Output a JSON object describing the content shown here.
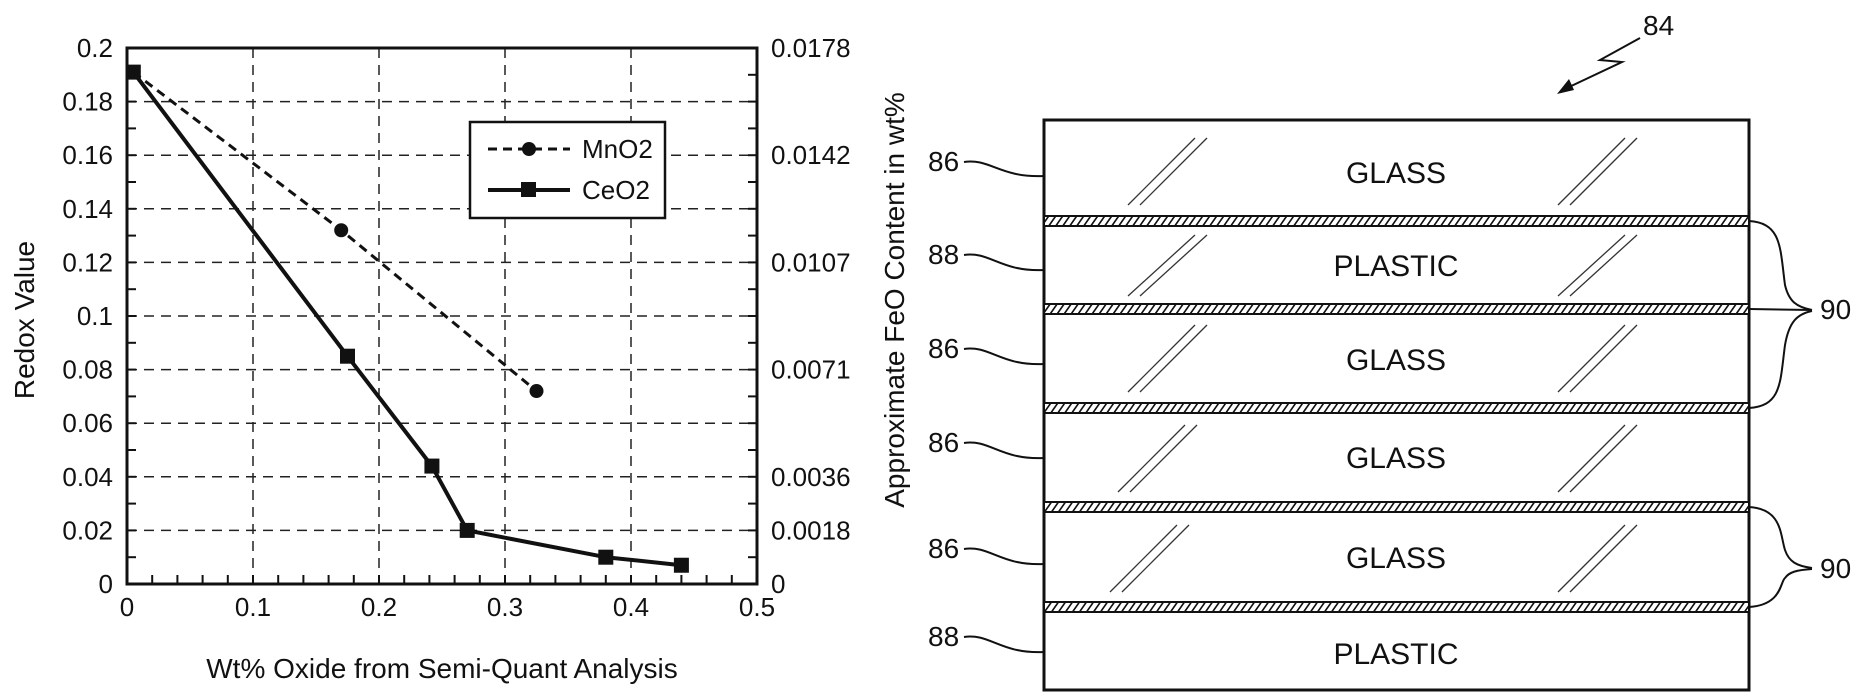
{
  "chart_data": {
    "type": "line",
    "xlabel": "Wt% Oxide from Semi-Quant Analysis",
    "ylabel": "Redox Value",
    "y2label": "Approximate FeO Content in wt%",
    "xlim": [
      0,
      0.5
    ],
    "ylim": [
      0,
      0.2
    ],
    "x_ticks": [
      "0",
      "0.1",
      "0.2",
      "0.3",
      "0.4",
      "0.5"
    ],
    "y_ticks": [
      "0",
      "0.02",
      "0.04",
      "0.06",
      "0.08",
      "0.1",
      "0.12",
      "0.14",
      "0.16",
      "0.18",
      "0.2"
    ],
    "y2_ticks": [
      {
        "label": "0.0178",
        "at": 0.2
      },
      {
        "label": "0.0142",
        "at": 0.16
      },
      {
        "label": "0.0107",
        "at": 0.12
      },
      {
        "label": "0.0071",
        "at": 0.08
      },
      {
        "label": "0.0036",
        "at": 0.04
      },
      {
        "label": "0.0018",
        "at": 0.02
      },
      {
        "label": "0",
        "at": 0
      }
    ],
    "grid": true,
    "legend_position": "top-right",
    "series": [
      {
        "name": "MnO2",
        "line": "dashed",
        "marker": "circle",
        "x": [
          0.005,
          0.17,
          0.325
        ],
        "y": [
          0.191,
          0.132,
          0.072
        ]
      },
      {
        "name": "CeO2",
        "line": "solid",
        "marker": "square",
        "x": [
          0.005,
          0.175,
          0.242,
          0.27,
          0.38,
          0.44
        ],
        "y": [
          0.191,
          0.085,
          0.044,
          0.02,
          0.01,
          0.007
        ]
      }
    ]
  },
  "diagram": {
    "figure_number": "84",
    "layers": [
      {
        "label": "GLASS",
        "ref": "86"
      },
      {
        "label": "PLASTIC",
        "ref": "88"
      },
      {
        "label": "GLASS",
        "ref": "86"
      },
      {
        "label": "GLASS",
        "ref": "86"
      },
      {
        "label": "GLASS",
        "ref": "86"
      },
      {
        "label": "PLASTIC",
        "ref": "88"
      }
    ],
    "interlayer_refs": [
      "90",
      "90"
    ]
  }
}
